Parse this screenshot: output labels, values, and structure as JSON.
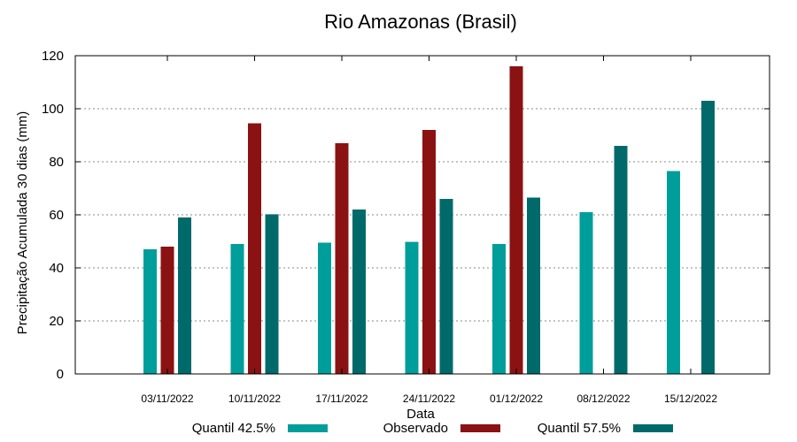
{
  "chart_data": {
    "type": "bar",
    "title": "Rio Amazonas (Brasil)",
    "xlabel": "Data",
    "ylabel": "Precipitação Acumulada 30 dias (mm)",
    "ylim": [
      0,
      120
    ],
    "yticks": [
      0,
      20,
      40,
      60,
      80,
      100,
      120
    ],
    "grid": true,
    "legend_position": "bottom",
    "categories": [
      "03/11/2022",
      "10/11/2022",
      "17/11/2022",
      "24/11/2022",
      "01/12/2022",
      "08/12/2022",
      "15/12/2022"
    ],
    "series": [
      {
        "name": "Quantil 42.5%",
        "color": "#009e9a",
        "values": [
          47,
          49,
          49.5,
          49.8,
          49,
          61,
          76.5
        ]
      },
      {
        "name": "Observado",
        "color": "#8b1212",
        "values": [
          48,
          94.5,
          87,
          92,
          116,
          null,
          null
        ]
      },
      {
        "name": "Quantil 57.5%",
        "color": "#006a6a",
        "values": [
          59,
          60.2,
          62,
          66,
          66.5,
          86,
          103
        ]
      }
    ]
  }
}
